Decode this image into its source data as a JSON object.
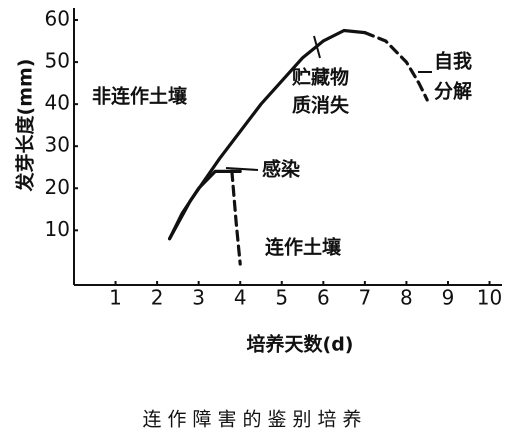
{
  "chart_data": {
    "type": "line",
    "y_label": "发芽长度(mm)",
    "x_label": "培养天数(d)",
    "caption": "连作障害的鉴别培养",
    "xlim": [
      0,
      10.3
    ],
    "ylim": [
      -3,
      62
    ],
    "xticks": [
      1,
      2,
      3,
      4,
      5,
      6,
      7,
      8,
      9,
      10
    ],
    "yticks": [
      10,
      20,
      30,
      40,
      50,
      60
    ],
    "color": "#111111",
    "series": [
      {
        "name": "非连作土壤",
        "style": "solid",
        "x": [
          2.3,
          2.8,
          3.5,
          4.5,
          5.5,
          6,
          6.5,
          7
        ],
        "values": [
          8,
          17,
          27,
          40,
          51,
          55,
          57.5,
          57
        ]
      },
      {
        "style": "dashed",
        "x": [
          7,
          7.5,
          8,
          8.3,
          8.5
        ],
        "values": [
          57,
          55,
          50,
          45,
          41
        ]
      },
      {
        "name": "连作土壤",
        "style": "solid",
        "x": [
          2.3,
          2.6,
          3,
          3.4,
          4
        ],
        "values": [
          8,
          14,
          20,
          24,
          24
        ]
      },
      {
        "style": "dashed",
        "x": [
          3.8,
          3.9,
          4
        ],
        "values": [
          24,
          12,
          2
        ]
      }
    ],
    "annotations": {
      "infection": "感染",
      "depleted": [
        "贮藏物",
        "质消失"
      ],
      "autolysis": [
        "自我",
        "分解"
      ]
    }
  }
}
